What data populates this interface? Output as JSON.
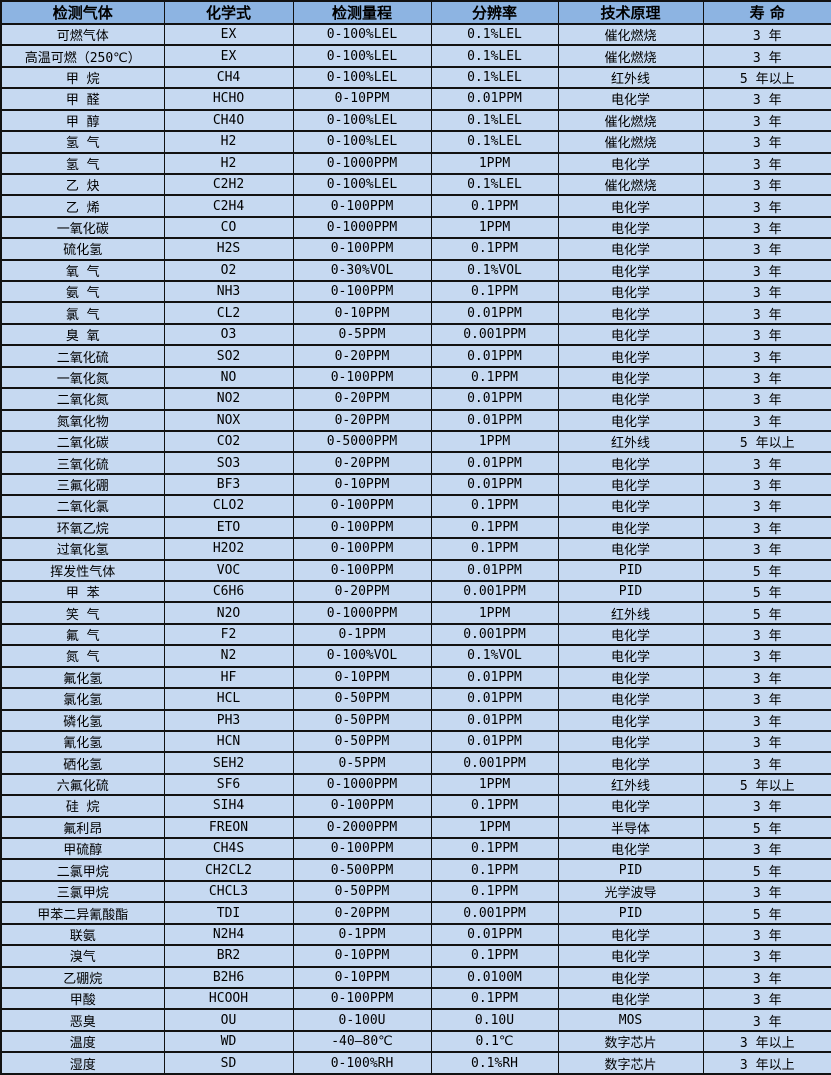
{
  "colors": {
    "header_bg": "#8db4e2",
    "row_bg": "#c6d9f1",
    "border": "#121212",
    "text": "#000000"
  },
  "table": {
    "columns": [
      "检测气体",
      "化学式",
      "检测量程",
      "分辨率",
      "技术原理",
      "寿 命"
    ],
    "rows": [
      [
        "可燃气体",
        "EX",
        "0-100%LEL",
        "0.1%LEL",
        "催化燃烧",
        "3 年"
      ],
      [
        "高温可燃（250℃）",
        "EX",
        "0-100%LEL",
        "0.1%LEL",
        "催化燃烧",
        "3 年"
      ],
      [
        "甲 烷",
        "CH4",
        "0-100%LEL",
        "0.1%LEL",
        "红外线",
        "5 年以上"
      ],
      [
        "甲 醛",
        "HCHO",
        "0-10PPM",
        "0.01PPM",
        "电化学",
        "3 年"
      ],
      [
        "甲 醇",
        "CH4O",
        "0-100%LEL",
        "0.1%LEL",
        "催化燃烧",
        "3 年"
      ],
      [
        "氢 气",
        "H2",
        "0-100%LEL",
        "0.1%LEL",
        "催化燃烧",
        "3 年"
      ],
      [
        "氢 气",
        "H2",
        "0-1000PPM",
        "1PPM",
        "电化学",
        "3 年"
      ],
      [
        "乙 炔",
        "C2H2",
        "0-100%LEL",
        "0.1%LEL",
        "催化燃烧",
        "3 年"
      ],
      [
        "乙 烯",
        "C2H4",
        "0-100PPM",
        "0.1PPM",
        "电化学",
        "3 年"
      ],
      [
        "一氧化碳",
        "CO",
        "0-1000PPM",
        "1PPM",
        "电化学",
        "3 年"
      ],
      [
        "硫化氢",
        "H2S",
        "0-100PPM",
        "0.1PPM",
        "电化学",
        "3 年"
      ],
      [
        "氧 气",
        "O2",
        "0-30%VOL",
        "0.1%VOL",
        "电化学",
        "3 年"
      ],
      [
        "氨 气",
        "NH3",
        "0-100PPM",
        "0.1PPM",
        "电化学",
        "3 年"
      ],
      [
        "氯 气",
        "CL2",
        "0-10PPM",
        "0.01PPM",
        "电化学",
        "3 年"
      ],
      [
        "臭 氧",
        "O3",
        "0-5PPM",
        "0.001PPM",
        "电化学",
        "3 年"
      ],
      [
        "二氧化硫",
        "SO2",
        "0-20PPM",
        "0.01PPM",
        "电化学",
        "3 年"
      ],
      [
        "一氧化氮",
        "NO",
        "0-100PPM",
        "0.1PPM",
        "电化学",
        "3 年"
      ],
      [
        "二氧化氮",
        "NO2",
        "0-20PPM",
        "0.01PPM",
        "电化学",
        "3 年"
      ],
      [
        "氮氧化物",
        "NOX",
        "0-20PPM",
        "0.01PPM",
        "电化学",
        "3 年"
      ],
      [
        "二氧化碳",
        "CO2",
        "0-5000PPM",
        "1PPM",
        "红外线",
        "5 年以上"
      ],
      [
        "三氧化硫",
        "SO3",
        "0-20PPM",
        "0.01PPM",
        "电化学",
        "3 年"
      ],
      [
        "三氟化硼",
        "BF3",
        "0-10PPM",
        "0.01PPM",
        "电化学",
        "3 年"
      ],
      [
        "二氧化氯",
        "CLO2",
        "0-100PPM",
        "0.1PPM",
        "电化学",
        "3 年"
      ],
      [
        "环氧乙烷",
        "ETO",
        "0-100PPM",
        "0.1PPM",
        "电化学",
        "3 年"
      ],
      [
        "过氧化氢",
        "H2O2",
        "0-100PPM",
        "0.1PPM",
        "电化学",
        "3 年"
      ],
      [
        "挥发性气体",
        "VOC",
        "0-100PPM",
        "0.01PPM",
        "PID",
        "5 年"
      ],
      [
        "甲 苯",
        "C6H6",
        "0-20PPM",
        "0.001PPM",
        "PID",
        "5 年"
      ],
      [
        "笑 气",
        "N2O",
        "0-1000PPM",
        "1PPM",
        "红外线",
        "5 年"
      ],
      [
        "氟 气",
        "F2",
        "0-1PPM",
        "0.001PPM",
        "电化学",
        "3 年"
      ],
      [
        "氮 气",
        "N2",
        "0-100%VOL",
        "0.1%VOL",
        "电化学",
        "3 年"
      ],
      [
        "氟化氢",
        "HF",
        "0-10PPM",
        "0.01PPM",
        "电化学",
        "3 年"
      ],
      [
        "氯化氢",
        "HCL",
        "0-50PPM",
        "0.01PPM",
        "电化学",
        "3 年"
      ],
      [
        "磷化氢",
        "PH3",
        "0-50PPM",
        "0.01PPM",
        "电化学",
        "3 年"
      ],
      [
        "氰化氢",
        "HCN",
        "0-50PPM",
        "0.01PPM",
        "电化学",
        "3 年"
      ],
      [
        "硒化氢",
        "SEH2",
        "0-5PPM",
        "0.001PPM",
        "电化学",
        "3 年"
      ],
      [
        "六氟化硫",
        "SF6",
        "0-1000PPM",
        "1PPM",
        "红外线",
        "5 年以上"
      ],
      [
        "硅 烷",
        "SIH4",
        "0-100PPM",
        "0.1PPM",
        "电化学",
        "3 年"
      ],
      [
        "氟利昂",
        "FREON",
        "0-2000PPM",
        "1PPM",
        "半导体",
        "5 年"
      ],
      [
        "甲硫醇",
        "CH4S",
        "0-100PPM",
        "0.1PPM",
        "电化学",
        "3 年"
      ],
      [
        "二氯甲烷",
        "CH2CL2",
        "0-500PPM",
        "0.1PPM",
        "PID",
        "5 年"
      ],
      [
        "三氯甲烷",
        "CHCL3",
        "0-50PPM",
        "0.1PPM",
        "光学波导",
        "3 年"
      ],
      [
        "甲苯二异氰酸酯",
        "TDI",
        "0-20PPM",
        "0.001PPM",
        "PID",
        "5 年"
      ],
      [
        "联氨",
        "N2H4",
        "0-1PPM",
        "0.01PPM",
        "电化学",
        "3 年"
      ],
      [
        "溴气",
        "BR2",
        "0-10PPM",
        "0.1PPM",
        "电化学",
        "3 年"
      ],
      [
        "乙硼烷",
        "B2H6",
        "0-10PPM",
        "0.0100M",
        "电化学",
        "3 年"
      ],
      [
        "甲酸",
        "HCOOH",
        "0-100PPM",
        "0.1PPM",
        "电化学",
        "3 年"
      ],
      [
        "恶臭",
        "OU",
        "0-100U",
        "0.10U",
        "MOS",
        "3 年"
      ],
      [
        "温度",
        "WD",
        "-40—80℃",
        "0.1℃",
        "数字芯片",
        "3 年以上"
      ],
      [
        "湿度",
        "SD",
        "0-100%RH",
        "0.1%RH",
        "数字芯片",
        "3 年以上"
      ]
    ]
  }
}
